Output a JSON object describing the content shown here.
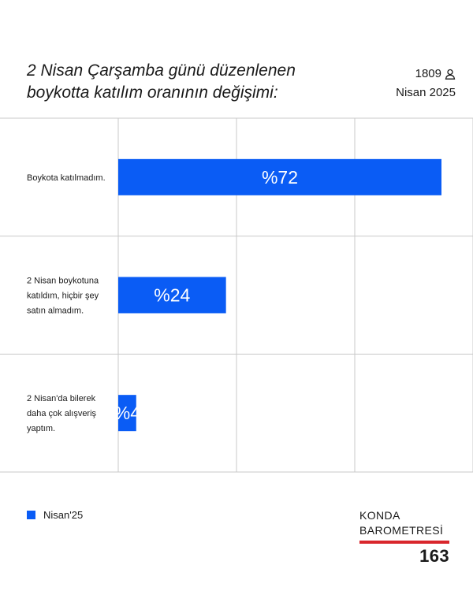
{
  "header": {
    "title_line1": "2 Nisan Çarşamba günü düzenlenen",
    "title_line2": "boykotta katılım oranının değişimi:",
    "sample_size": "1809",
    "sample_icon": "person-icon",
    "period": "Nisan 2025"
  },
  "colors": {
    "bar": "#0a5cf5",
    "grid": "#c8c8c8",
    "accent_rule": "#d9262c"
  },
  "chart_data": {
    "type": "bar",
    "orientation": "horizontal",
    "categories": [
      [
        "Boykota katılmadım."
      ],
      [
        "2 Nisan boykotuna",
        "katıldım, hiçbir şey",
        "satın almadım."
      ],
      [
        "2 Nisan'da bilerek",
        "daha çok alışveriş",
        "yaptım."
      ]
    ],
    "series": [
      {
        "name": "Nisan'25",
        "values": [
          72,
          24,
          4
        ]
      }
    ],
    "data_labels": [
      "%72",
      "%24",
      "%4"
    ],
    "xlim": [
      0,
      75
    ],
    "grid": true
  },
  "legend": {
    "label": "Nisan'25"
  },
  "brand": {
    "line1": "KONDA",
    "line2": "BAROMETRESİ",
    "number": "163"
  }
}
